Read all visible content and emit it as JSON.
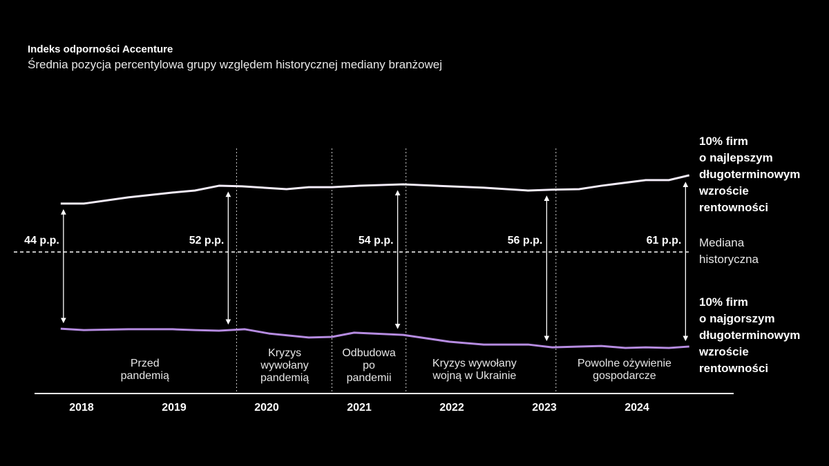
{
  "chart_data": {
    "type": "line",
    "title": "Indeks odporności Accenture",
    "subtitle": "Średnia pozycja percentylowa grupy względem historycznej mediany branżowej",
    "xlabel": "",
    "ylabel": "",
    "x_tick_labels": [
      "2018",
      "2019",
      "2020",
      "2021",
      "2022",
      "2023",
      "2024"
    ],
    "grid": false,
    "reference_line": {
      "label": "Mediana historyczna",
      "value": 0
    },
    "series": [
      {
        "name": "10% firm o najlepszym długoterminowym wzroście rentowności",
        "label_lines": [
          "10% firm",
          "o najlepszym",
          "długoterminowym",
          "wzroście",
          "rentowności"
        ],
        "color": "#f3ecf8",
        "points": [
          [
            2018.26,
            17.1
          ],
          [
            2018.51,
            17.1
          ],
          [
            2018.99,
            19.3
          ],
          [
            2019.47,
            21.0
          ],
          [
            2019.71,
            21.7
          ],
          [
            2019.97,
            23.4
          ],
          [
            2020.22,
            23.2
          ],
          [
            2020.7,
            22.2
          ],
          [
            2020.94,
            22.9
          ],
          [
            2021.19,
            22.9
          ],
          [
            2021.49,
            23.4
          ],
          [
            2021.96,
            23.9
          ],
          [
            2022.46,
            23.2
          ],
          [
            2022.83,
            22.7
          ],
          [
            2023.31,
            21.7
          ],
          [
            2023.57,
            22.0
          ],
          [
            2023.86,
            22.2
          ],
          [
            2024.1,
            23.4
          ],
          [
            2024.58,
            25.4
          ],
          [
            2024.83,
            25.4
          ],
          [
            2025.05,
            27.1
          ]
        ]
      },
      {
        "name": "10% firm o najgorszym długoterminowym wzroście rentowności",
        "label_lines": [
          "10% firm",
          "o najgorszym",
          "długoterminowym",
          "wzroście",
          "rentowności"
        ],
        "color": "#b58be0",
        "points": [
          [
            2018.26,
            -27.1
          ],
          [
            2018.51,
            -27.6
          ],
          [
            2018.99,
            -27.3
          ],
          [
            2019.47,
            -27.3
          ],
          [
            2019.71,
            -27.6
          ],
          [
            2019.97,
            -27.8
          ],
          [
            2020.25,
            -27.3
          ],
          [
            2020.51,
            -28.8
          ],
          [
            2020.94,
            -30.2
          ],
          [
            2021.19,
            -30.0
          ],
          [
            2021.43,
            -28.5
          ],
          [
            2021.96,
            -29.3
          ],
          [
            2022.46,
            -31.7
          ],
          [
            2022.83,
            -32.7
          ],
          [
            2023.31,
            -32.7
          ],
          [
            2023.57,
            -33.7
          ],
          [
            2023.86,
            -33.4
          ],
          [
            2024.1,
            -33.2
          ],
          [
            2024.36,
            -33.9
          ],
          [
            2024.58,
            -33.7
          ],
          [
            2024.83,
            -33.9
          ],
          [
            2025.05,
            -33.4
          ]
        ]
      }
    ],
    "gaps": [
      {
        "x": 2018.29,
        "label": "44 p.p."
      },
      {
        "x": 2020.07,
        "label": "52 p.p."
      },
      {
        "x": 2021.9,
        "label": "54 p.p."
      },
      {
        "x": 2023.51,
        "label": "56 p.p."
      },
      {
        "x": 2025.01,
        "label": "61 p.p."
      }
    ],
    "period_dividers": [
      2020.16,
      2021.19,
      2021.99,
      2023.61
    ],
    "periods": [
      {
        "label": "Przed\npandemią",
        "x": 2019.17
      },
      {
        "label": "Kryzys\nwywołany\npandemią",
        "x": 2020.68
      },
      {
        "label": "Odbudowa\npo\npandemii",
        "x": 2021.59
      },
      {
        "label": "Kryzys wywołany\nwojną w Ukrainie",
        "x": 2022.73
      },
      {
        "label": "Powolne ożywienie\ngospodarcze",
        "x": 2024.35
      }
    ]
  }
}
